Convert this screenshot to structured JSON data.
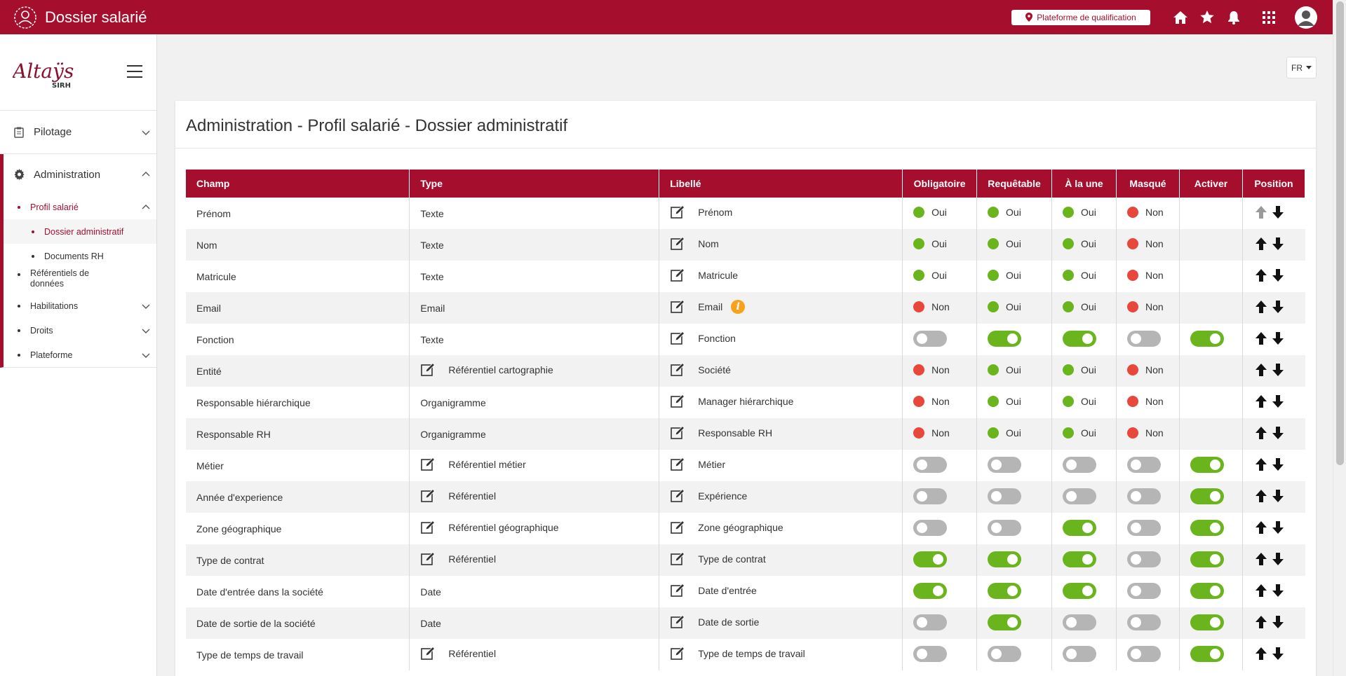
{
  "header": {
    "title": "Dossier salarié",
    "environment_label": "Plateforme de qualification",
    "icons": [
      "home-icon",
      "star-icon",
      "bell-icon",
      "apps-grid-icon",
      "user-avatar"
    ]
  },
  "sidebar": {
    "brand_name": "Altaÿs",
    "brand_sub": "SIRH",
    "nav": {
      "pilotage": "Pilotage",
      "administration": "Administration",
      "profil_salarie": "Profil salarié",
      "dossier_administratif": "Dossier administratif",
      "documents_rh": "Documents RH",
      "referentiels": "Référentiels de données",
      "habilitations": "Habilitations",
      "droits": "Droits",
      "plateforme": "Plateforme"
    }
  },
  "language": "FR",
  "page": {
    "title": "Administration - Profil salarié - Dossier administratif"
  },
  "table": {
    "headers": [
      "Champ",
      "Type",
      "Libellé",
      "Obligatoire",
      "Requêtable",
      "À la une",
      "Masqué",
      "Activer",
      "Position"
    ],
    "yes": "Oui",
    "no": "Non",
    "rows": [
      {
        "champ": "Prénom",
        "type": "Texte",
        "type_edit": false,
        "libelle": "Prénom",
        "info": false,
        "mode": "pill",
        "obligatoire": true,
        "requetable": true,
        "alaune": true,
        "masque": false,
        "activer": null,
        "up_enabled": false
      },
      {
        "champ": "Nom",
        "type": "Texte",
        "type_edit": false,
        "libelle": "Nom",
        "info": false,
        "mode": "pill",
        "obligatoire": true,
        "requetable": true,
        "alaune": true,
        "masque": false,
        "activer": null,
        "up_enabled": true
      },
      {
        "champ": "Matricule",
        "type": "Texte",
        "type_edit": false,
        "libelle": "Matricule",
        "info": false,
        "mode": "pill",
        "obligatoire": true,
        "requetable": true,
        "alaune": true,
        "masque": false,
        "activer": null,
        "up_enabled": true
      },
      {
        "champ": "Email",
        "type": "Email",
        "type_edit": false,
        "libelle": "Email",
        "info": true,
        "mode": "pill",
        "obligatoire": false,
        "requetable": true,
        "alaune": true,
        "masque": false,
        "activer": null,
        "up_enabled": true
      },
      {
        "champ": "Fonction",
        "type": "Texte",
        "type_edit": false,
        "libelle": "Fonction",
        "info": false,
        "mode": "toggle",
        "obligatoire": false,
        "requetable": true,
        "alaune": true,
        "masque": false,
        "activer": true,
        "up_enabled": true
      },
      {
        "champ": "Entité",
        "type": "Référentiel cartographie",
        "type_edit": true,
        "libelle": "Société",
        "info": false,
        "mode": "pill",
        "obligatoire": false,
        "requetable": true,
        "alaune": true,
        "masque": false,
        "activer": null,
        "up_enabled": true
      },
      {
        "champ": "Responsable hiérarchique",
        "type": "Organigramme",
        "type_edit": false,
        "libelle": "Manager hiérarchique",
        "info": false,
        "mode": "pill",
        "obligatoire": false,
        "requetable": true,
        "alaune": true,
        "masque": false,
        "activer": null,
        "up_enabled": true
      },
      {
        "champ": "Responsable RH",
        "type": "Organigramme",
        "type_edit": false,
        "libelle": "Responsable RH",
        "info": false,
        "mode": "pill",
        "obligatoire": false,
        "requetable": true,
        "alaune": true,
        "masque": false,
        "activer": null,
        "up_enabled": true
      },
      {
        "champ": "Métier",
        "type": "Référentiel métier",
        "type_edit": true,
        "libelle": "Métier",
        "info": false,
        "mode": "toggle",
        "obligatoire": false,
        "requetable": false,
        "alaune": false,
        "masque": false,
        "activer": true,
        "up_enabled": true
      },
      {
        "champ": "Année d'experience",
        "type": "Référentiel",
        "type_edit": true,
        "libelle": "Expérience",
        "info": false,
        "mode": "toggle",
        "obligatoire": false,
        "requetable": false,
        "alaune": false,
        "masque": false,
        "activer": true,
        "up_enabled": true
      },
      {
        "champ": "Zone géographique",
        "type": "Référentiel géographique",
        "type_edit": true,
        "libelle": "Zone géographique",
        "info": false,
        "mode": "toggle",
        "obligatoire": false,
        "requetable": false,
        "alaune": true,
        "masque": false,
        "activer": true,
        "up_enabled": true
      },
      {
        "champ": "Type de contrat",
        "type": "Référentiel",
        "type_edit": true,
        "libelle": "Type de contrat",
        "info": false,
        "mode": "toggle",
        "obligatoire": true,
        "requetable": true,
        "alaune": true,
        "masque": false,
        "activer": true,
        "up_enabled": true
      },
      {
        "champ": "Date d'entrée dans la société",
        "type": "Date",
        "type_edit": false,
        "libelle": "Date d'entrée",
        "info": false,
        "mode": "toggle",
        "obligatoire": true,
        "requetable": true,
        "alaune": true,
        "masque": false,
        "activer": true,
        "up_enabled": true
      },
      {
        "champ": "Date de sortie de la société",
        "type": "Date",
        "type_edit": false,
        "libelle": "Date de sortie",
        "info": false,
        "mode": "toggle",
        "obligatoire": false,
        "requetable": true,
        "alaune": false,
        "masque": false,
        "activer": true,
        "up_enabled": true
      },
      {
        "champ": "Type de temps de travail",
        "type": "Référentiel",
        "type_edit": true,
        "libelle": "Type de temps de travail",
        "info": false,
        "mode": "toggle",
        "obligatoire": false,
        "requetable": false,
        "alaune": false,
        "masque": false,
        "activer": true,
        "up_enabled": true
      }
    ]
  },
  "colors": {
    "brand": "#a50f2d",
    "green": "#6ab41e",
    "red": "#e8473c",
    "toggle_off": "#b5b5b5",
    "info": "#f7a21b"
  }
}
